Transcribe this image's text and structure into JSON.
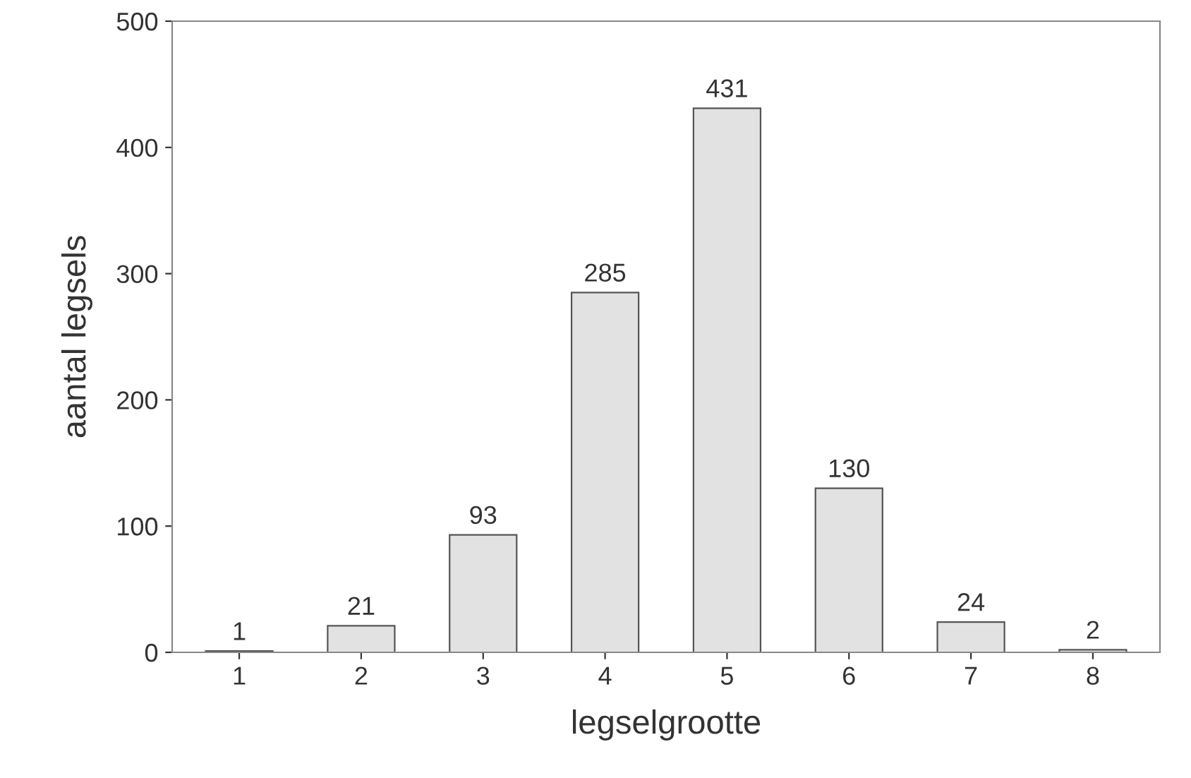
{
  "chart_data": {
    "type": "bar",
    "xlabel": "legselgrootte",
    "ylabel": "aantal legsels",
    "categories": [
      "1",
      "2",
      "3",
      "4",
      "5",
      "6",
      "7",
      "8"
    ],
    "values": [
      1,
      21,
      93,
      285,
      431,
      130,
      24,
      2
    ],
    "color": "#e2e2e2",
    "ylim": [
      0,
      500
    ],
    "yticks": [
      0,
      100,
      200,
      300,
      400,
      500
    ],
    "data_labels": true,
    "grid": false
  }
}
